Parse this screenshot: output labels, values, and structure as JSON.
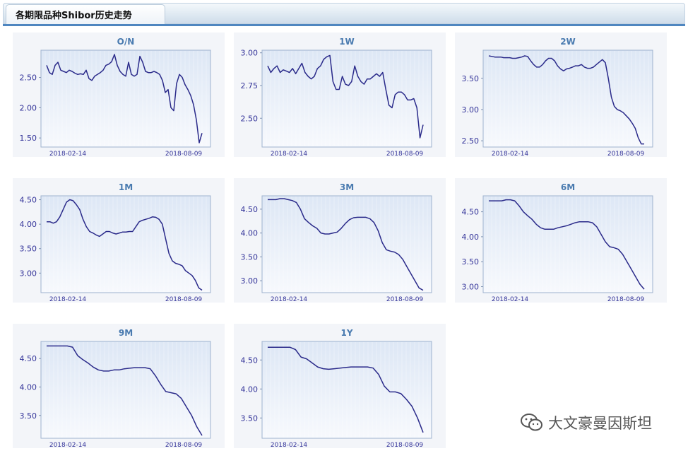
{
  "header": {
    "title": "各期限品种Shibor历史走势"
  },
  "watermark": {
    "text": "大文豪曼因斯坦",
    "icon": "wechat-icon"
  },
  "colors": {
    "line": "#2a2a8a",
    "title": "#4a7bb0",
    "tick": "#333399",
    "plot_bg": "#eaf0f9",
    "panel_bg": "#f3f5f9"
  },
  "chart_data": [
    {
      "type": "line",
      "title": "O/N",
      "xlabel": "",
      "ylabel": "",
      "x_ticks": [
        "2018-02-14",
        "2018-08-09"
      ],
      "y_ticks": [
        2.5,
        2.0,
        1.5
      ],
      "ylim": [
        1.35,
        2.95
      ],
      "series": [
        {
          "values": [
            2.7,
            2.58,
            2.55,
            2.7,
            2.75,
            2.62,
            2.6,
            2.58,
            2.62,
            2.6,
            2.57,
            2.55,
            2.56,
            2.55,
            2.62,
            2.48,
            2.45,
            2.52,
            2.55,
            2.58,
            2.62,
            2.7,
            2.72,
            2.76,
            2.88,
            2.7,
            2.6,
            2.55,
            2.52,
            2.75,
            2.55,
            2.52,
            2.55,
            2.85,
            2.75,
            2.6,
            2.58,
            2.58,
            2.6,
            2.58,
            2.55,
            2.45,
            2.25,
            2.3,
            2.0,
            1.95,
            2.4,
            2.55,
            2.5,
            2.38,
            2.3,
            2.2,
            2.05,
            1.8,
            1.42,
            1.58
          ]
        }
      ]
    },
    {
      "type": "line",
      "title": "1W",
      "xlabel": "",
      "ylabel": "",
      "x_ticks": [
        "2018-02-14",
        "2018-08-09"
      ],
      "y_ticks": [
        3.0,
        2.75,
        2.5
      ],
      "ylim": [
        2.28,
        3.02
      ],
      "series": [
        {
          "values": [
            2.9,
            2.85,
            2.88,
            2.9,
            2.85,
            2.87,
            2.86,
            2.85,
            2.88,
            2.84,
            2.88,
            2.92,
            2.85,
            2.82,
            2.8,
            2.82,
            2.88,
            2.9,
            2.95,
            2.97,
            2.98,
            2.78,
            2.72,
            2.72,
            2.82,
            2.76,
            2.75,
            2.78,
            2.9,
            2.82,
            2.78,
            2.76,
            2.8,
            2.8,
            2.82,
            2.84,
            2.82,
            2.85,
            2.72,
            2.6,
            2.58,
            2.68,
            2.7,
            2.7,
            2.68,
            2.64,
            2.64,
            2.65,
            2.58,
            2.35,
            2.45
          ]
        }
      ]
    },
    {
      "type": "line",
      "title": "2W",
      "xlabel": "",
      "ylabel": "",
      "x_ticks": [
        "2018-02-14",
        "2018-08-09"
      ],
      "y_ticks": [
        3.5,
        3.0,
        2.5
      ],
      "ylim": [
        2.4,
        3.95
      ],
      "series": [
        {
          "values": [
            3.86,
            3.85,
            3.84,
            3.84,
            3.84,
            3.83,
            3.83,
            3.83,
            3.82,
            3.82,
            3.83,
            3.84,
            3.86,
            3.85,
            3.78,
            3.72,
            3.68,
            3.68,
            3.72,
            3.78,
            3.82,
            3.82,
            3.78,
            3.7,
            3.65,
            3.62,
            3.65,
            3.66,
            3.68,
            3.7,
            3.7,
            3.72,
            3.68,
            3.66,
            3.66,
            3.68,
            3.72,
            3.76,
            3.8,
            3.75,
            3.5,
            3.2,
            3.05,
            3.0,
            2.98,
            2.95,
            2.9,
            2.85,
            2.78,
            2.7,
            2.55,
            2.45,
            2.45
          ]
        }
      ]
    },
    {
      "type": "line",
      "title": "1M",
      "xlabel": "",
      "ylabel": "",
      "x_ticks": [
        "2018-02-14",
        "2018-08-09"
      ],
      "y_ticks": [
        4.5,
        4.0,
        3.5,
        3.0
      ],
      "ylim": [
        2.6,
        4.58
      ],
      "series": [
        {
          "values": [
            4.05,
            4.05,
            4.02,
            4.05,
            4.15,
            4.3,
            4.45,
            4.5,
            4.48,
            4.4,
            4.3,
            4.1,
            3.95,
            3.85,
            3.82,
            3.78,
            3.75,
            3.8,
            3.85,
            3.85,
            3.82,
            3.8,
            3.82,
            3.84,
            3.84,
            3.85,
            3.85,
            3.95,
            4.05,
            4.08,
            4.1,
            4.12,
            4.15,
            4.14,
            4.1,
            4.0,
            3.7,
            3.4,
            3.25,
            3.2,
            3.18,
            3.15,
            3.05,
            3.0,
            2.95,
            2.85,
            2.7,
            2.65
          ]
        }
      ]
    },
    {
      "type": "line",
      "title": "3M",
      "xlabel": "",
      "ylabel": "",
      "x_ticks": [
        "2018-02-14",
        "2018-08-09"
      ],
      "y_ticks": [
        4.5,
        4.0,
        3.5,
        3.0
      ],
      "ylim": [
        2.75,
        4.78
      ],
      "series": [
        {
          "values": [
            4.7,
            4.7,
            4.7,
            4.72,
            4.72,
            4.7,
            4.68,
            4.64,
            4.5,
            4.3,
            4.22,
            4.15,
            4.1,
            4.0,
            3.98,
            3.98,
            4.0,
            4.02,
            4.1,
            4.2,
            4.28,
            4.32,
            4.33,
            4.33,
            4.33,
            4.3,
            4.22,
            4.05,
            3.8,
            3.65,
            3.62,
            3.6,
            3.55,
            3.45,
            3.3,
            3.15,
            3.0,
            2.85,
            2.8
          ]
        }
      ]
    },
    {
      "type": "line",
      "title": "6M",
      "xlabel": "",
      "ylabel": "",
      "x_ticks": [
        "2018-02-14",
        "2018-08-09"
      ],
      "y_ticks": [
        4.5,
        4.0,
        3.5,
        3.0
      ],
      "ylim": [
        2.88,
        4.82
      ],
      "series": [
        {
          "values": [
            4.72,
            4.72,
            4.72,
            4.72,
            4.74,
            4.74,
            4.72,
            4.62,
            4.5,
            4.42,
            4.35,
            4.25,
            4.18,
            4.15,
            4.15,
            4.15,
            4.18,
            4.2,
            4.22,
            4.25,
            4.28,
            4.3,
            4.3,
            4.3,
            4.28,
            4.2,
            4.05,
            3.9,
            3.8,
            3.78,
            3.75,
            3.65,
            3.5,
            3.35,
            3.2,
            3.05,
            2.95
          ]
        }
      ]
    },
    {
      "type": "line",
      "title": "9M",
      "xlabel": "",
      "ylabel": "",
      "x_ticks": [
        "2018-02-14",
        "2018-08-09"
      ],
      "y_ticks": [
        4.5,
        4.0,
        3.5
      ],
      "ylim": [
        3.1,
        4.8
      ],
      "series": [
        {
          "values": [
            4.72,
            4.72,
            4.72,
            4.72,
            4.72,
            4.7,
            4.55,
            4.48,
            4.42,
            4.35,
            4.3,
            4.28,
            4.28,
            4.3,
            4.3,
            4.32,
            4.33,
            4.34,
            4.34,
            4.34,
            4.32,
            4.2,
            4.05,
            3.92,
            3.9,
            3.88,
            3.8,
            3.65,
            3.5,
            3.3,
            3.15
          ]
        }
      ]
    },
    {
      "type": "line",
      "title": "1Y",
      "xlabel": "",
      "ylabel": "",
      "x_ticks": [
        "2018-02-14",
        "2018-08-09"
      ],
      "y_ticks": [
        4.5,
        4.0,
        3.5
      ],
      "ylim": [
        3.15,
        4.82
      ],
      "series": [
        {
          "values": [
            4.72,
            4.72,
            4.72,
            4.72,
            4.72,
            4.68,
            4.55,
            4.52,
            4.45,
            4.38,
            4.35,
            4.34,
            4.35,
            4.36,
            4.37,
            4.38,
            4.38,
            4.38,
            4.38,
            4.36,
            4.25,
            4.05,
            3.95,
            3.95,
            3.92,
            3.82,
            3.7,
            3.5,
            3.25
          ]
        }
      ]
    }
  ]
}
